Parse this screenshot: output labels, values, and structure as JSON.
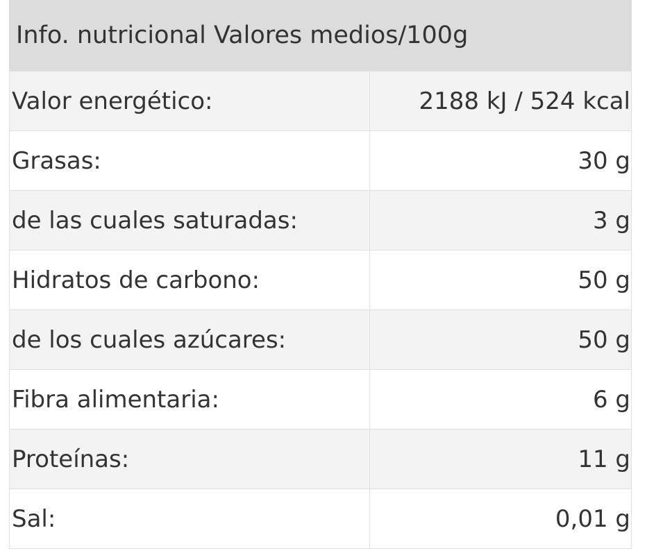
{
  "header": {
    "title": "Info. nutricional Valores medios/100g"
  },
  "table": {
    "rows": [
      [
        "Valor energético:",
        "2188 kJ / 524 kcal"
      ],
      [
        "Grasas:",
        "30 g"
      ],
      [
        "de las cuales saturadas:",
        "3 g"
      ],
      [
        "Hidratos de carbono:",
        "50 g"
      ],
      [
        "de los cuales azúcares:",
        "50 g"
      ],
      [
        "Fibra alimentaria:",
        "6 g"
      ],
      [
        "Proteínas:",
        "11 g"
      ],
      [
        "Sal:",
        "0,01 g"
      ]
    ]
  }
}
